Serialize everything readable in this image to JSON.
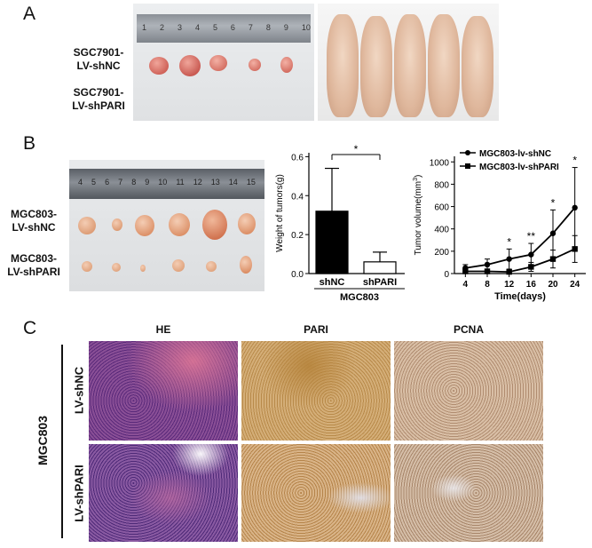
{
  "panels": {
    "a": "A",
    "b": "B",
    "c": "C"
  },
  "panel_a": {
    "row1": [
      "SGC7901-",
      "LV-shNC"
    ],
    "row2": [
      "SGC7901-",
      "LV-shPARI"
    ],
    "ruler_numbers": [
      "1",
      "2",
      "3",
      "4",
      "5",
      "6",
      "7",
      "8",
      "9",
      "10"
    ]
  },
  "panel_b": {
    "row1": [
      "MGC803-",
      "LV-shNC"
    ],
    "row2": [
      "MGC803-",
      "LV-shPARI"
    ],
    "ruler_numbers": [
      "4",
      "5",
      "6",
      "7",
      "8",
      "9",
      "10",
      "11",
      "12",
      "13",
      "14",
      "15"
    ]
  },
  "panel_c": {
    "columns": [
      "HE",
      "PARI",
      "PCNA"
    ],
    "group": "MGC803",
    "rows": [
      "LV-shNC",
      "LV-shPARI"
    ],
    "colors": {
      "he": "#8a3d86",
      "pari": "#c99a55",
      "pcna": "#c9a88c"
    }
  },
  "chart_data": [
    {
      "type": "bar",
      "categories": [
        "shNC",
        "shPARI"
      ],
      "values": [
        0.32,
        0.06
      ],
      "errors": [
        0.22,
        0.05
      ],
      "group_label": "MGC803",
      "ylabel": "Weight of tumors(g)",
      "yticks": [
        "0.0",
        "0.2",
        "0.4",
        "0.6"
      ],
      "ylim": [
        0,
        0.62
      ],
      "significance": "*",
      "colors": [
        "#000000",
        "#ffffff"
      ]
    },
    {
      "type": "line",
      "x": [
        4,
        8,
        12,
        16,
        20,
        24
      ],
      "xticks": [
        "4",
        "8",
        "12",
        "16",
        "20",
        "24"
      ],
      "xlabel": "Time(days)",
      "ylabel": "Tumor volume(mm",
      "ylabel_sup": "3",
      "ylabel_end": ")",
      "yticks": [
        "0",
        "200",
        "400",
        "600",
        "800",
        "1000"
      ],
      "ylim": [
        0,
        1050
      ],
      "annotations": [
        {
          "x": 12,
          "text": "*"
        },
        {
          "x": 16,
          "text": "**"
        },
        {
          "x": 20,
          "text": "*"
        },
        {
          "x": 24,
          "text": "*"
        }
      ],
      "series": [
        {
          "name": "MGC803-lv-shNC",
          "marker": "circle",
          "values": [
            50,
            80,
            130,
            170,
            360,
            590
          ],
          "errors": [
            30,
            50,
            90,
            100,
            210,
            360
          ]
        },
        {
          "name": "MGC803-lv-shPARI",
          "marker": "square",
          "values": [
            20,
            20,
            15,
            60,
            130,
            220
          ],
          "errors": [
            20,
            20,
            20,
            40,
            80,
            120
          ]
        }
      ]
    }
  ]
}
